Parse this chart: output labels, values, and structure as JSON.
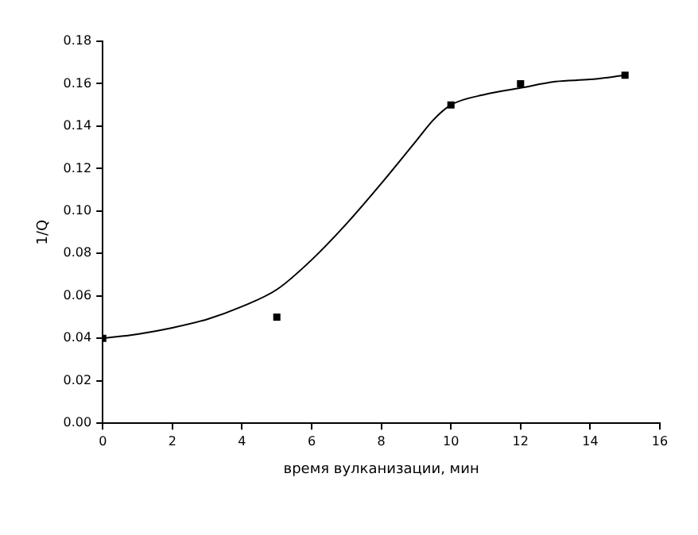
{
  "chart_data": {
    "type": "scatter",
    "xlabel": "время вулканизации, мин",
    "ylabel": "1/Q",
    "xlim": [
      0,
      16
    ],
    "xticks": [
      0,
      2,
      4,
      6,
      8,
      10,
      12,
      14,
      16
    ],
    "ylim": [
      0,
      0.18
    ],
    "yticks": [
      {
        "value": 0,
        "label": "0.00"
      },
      {
        "value": 0.02,
        "label": "0.02"
      },
      {
        "value": 0.04,
        "label": "0.04"
      },
      {
        "value": 0.06,
        "label": "0.06"
      },
      {
        "value": 0.08,
        "label": "0.08"
      },
      {
        "value": 0.1,
        "label": "0.10"
      },
      {
        "value": 0.12,
        "label": "0.12"
      },
      {
        "value": 0.14,
        "label": "0.14"
      },
      {
        "value": 0.16,
        "label": "0.16"
      },
      {
        "value": 0.18,
        "label": "0.18"
      }
    ],
    "grid": false,
    "legend": false,
    "series": [
      {
        "color": "#000000",
        "marker": "square",
        "x": [
          0,
          5,
          10,
          12,
          15
        ],
        "values": [
          0.04,
          0.05,
          0.15,
          0.16,
          0.164
        ]
      },
      {
        "type": "line",
        "color": "#000000",
        "marker": "none",
        "line_style": "solid",
        "x": [
          0,
          1,
          2,
          3,
          4,
          5,
          6,
          7,
          8,
          9,
          9.5,
          10,
          11,
          12,
          13,
          14,
          15
        ],
        "values": [
          0.04,
          0.042,
          0.045,
          0.049,
          0.055,
          0.063,
          0.077,
          0.094,
          0.113,
          0.133,
          0.143,
          0.15,
          0.155,
          0.158,
          0.161,
          0.162,
          0.164
        ]
      }
    ]
  }
}
